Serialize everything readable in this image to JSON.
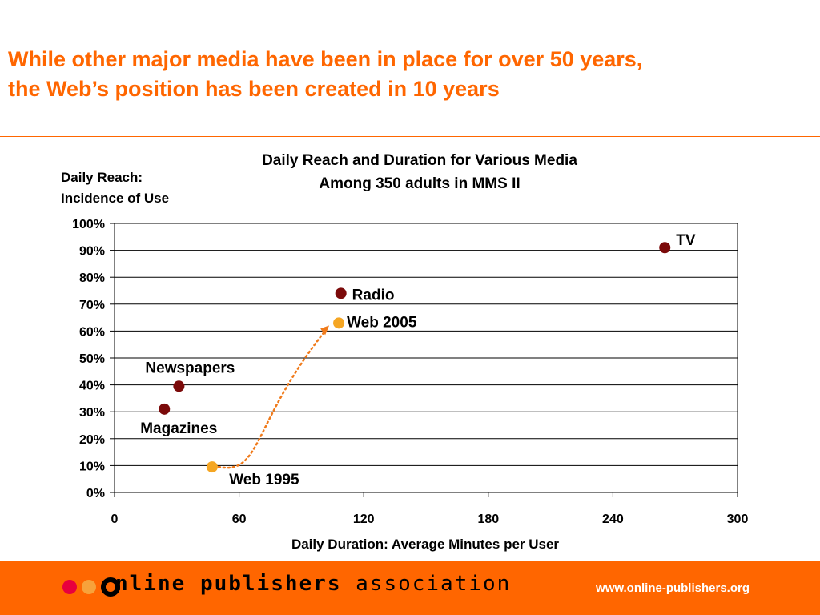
{
  "slide": {
    "headline_line1": "While other major media have been in place for over 50 years,",
    "headline_line2": "the Web’s position has been created in 10 years"
  },
  "colors": {
    "accent": "#FF6600",
    "media_point": "#7B0A0A",
    "web_point": "#F5A623",
    "logo_dot_red": "#E8003D",
    "logo_dot_orange": "#F7A23B",
    "arrow": "#F07A1A"
  },
  "chart_data": {
    "type": "scatter",
    "title": "Daily Reach and Duration for Various Media",
    "subtitle": "Among 350 adults in MMS II",
    "ylabel_line1": "Daily Reach:",
    "ylabel_line2": "Incidence of Use",
    "xlabel": "Daily Duration: Average Minutes per User",
    "xlim": [
      0,
      300
    ],
    "ylim": [
      0,
      100
    ],
    "x_ticks": [
      0,
      60,
      120,
      180,
      240,
      300
    ],
    "y_ticks": [
      0,
      10,
      20,
      30,
      40,
      50,
      60,
      70,
      80,
      90,
      100
    ],
    "y_tick_suffix": "%",
    "grid": "horizontal",
    "points": [
      {
        "label": "TV",
        "x": 265,
        "y": 91,
        "group": "media"
      },
      {
        "label": "Radio",
        "x": 109,
        "y": 74,
        "group": "media"
      },
      {
        "label": "Web 2005",
        "x": 108,
        "y": 63,
        "group": "web"
      },
      {
        "label": "Newspapers",
        "x": 31,
        "y": 39.5,
        "group": "media"
      },
      {
        "label": "Magazines",
        "x": 24,
        "y": 31,
        "group": "media"
      },
      {
        "label": "Web 1995",
        "x": 47,
        "y": 9.5,
        "group": "web"
      }
    ]
  },
  "footer": {
    "logo_word1": "nline",
    "logo_word2": "publishers",
    "logo_word3": "association",
    "url": "www.online-publishers.org"
  }
}
